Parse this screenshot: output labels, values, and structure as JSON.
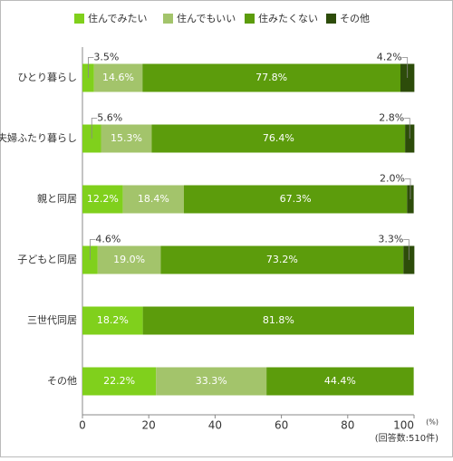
{
  "chart_data": {
    "type": "stacked-bar-horizontal",
    "categories": [
      "ひとり暮らし",
      "夫婦ふたり暮らし",
      "親と同居",
      "子どもと同居",
      "三世代同居",
      "その他"
    ],
    "series": [
      {
        "name": "住んでみたい",
        "color": "#80d01c",
        "values": [
          3.5,
          5.6,
          12.2,
          4.6,
          18.2,
          22.2
        ],
        "value_labels": [
          "3.5%",
          "5.6%",
          "12.2%",
          "4.6%",
          "18.2%",
          "22.2%"
        ]
      },
      {
        "name": "住んでもいい",
        "color": "#a3c46b",
        "values": [
          14.6,
          15.3,
          18.4,
          19.0,
          null,
          33.3
        ],
        "value_labels": [
          "14.6%",
          "15.3%",
          "18.4%",
          "19.0%",
          null,
          "33.3%"
        ]
      },
      {
        "name": "住みたくない",
        "color": "#5c9c0c",
        "values": [
          77.8,
          76.4,
          67.3,
          73.2,
          81.8,
          44.4
        ],
        "value_labels": [
          "77.8%",
          "76.4%",
          "67.3%",
          "73.2%",
          "81.8%",
          "44.4%"
        ]
      },
      {
        "name": "その他",
        "color": "#2d4c0a",
        "values": [
          4.2,
          2.8,
          2.0,
          3.3,
          null,
          null
        ],
        "value_labels": [
          "4.2%",
          "2.8%",
          "2.0%",
          "3.3%",
          null,
          null
        ]
      }
    ],
    "xlim": [
      0,
      100
    ],
    "xticks": [
      0,
      20,
      40,
      60,
      80,
      100
    ],
    "x_unit": "(%)",
    "note": "(回答数:510件)"
  }
}
